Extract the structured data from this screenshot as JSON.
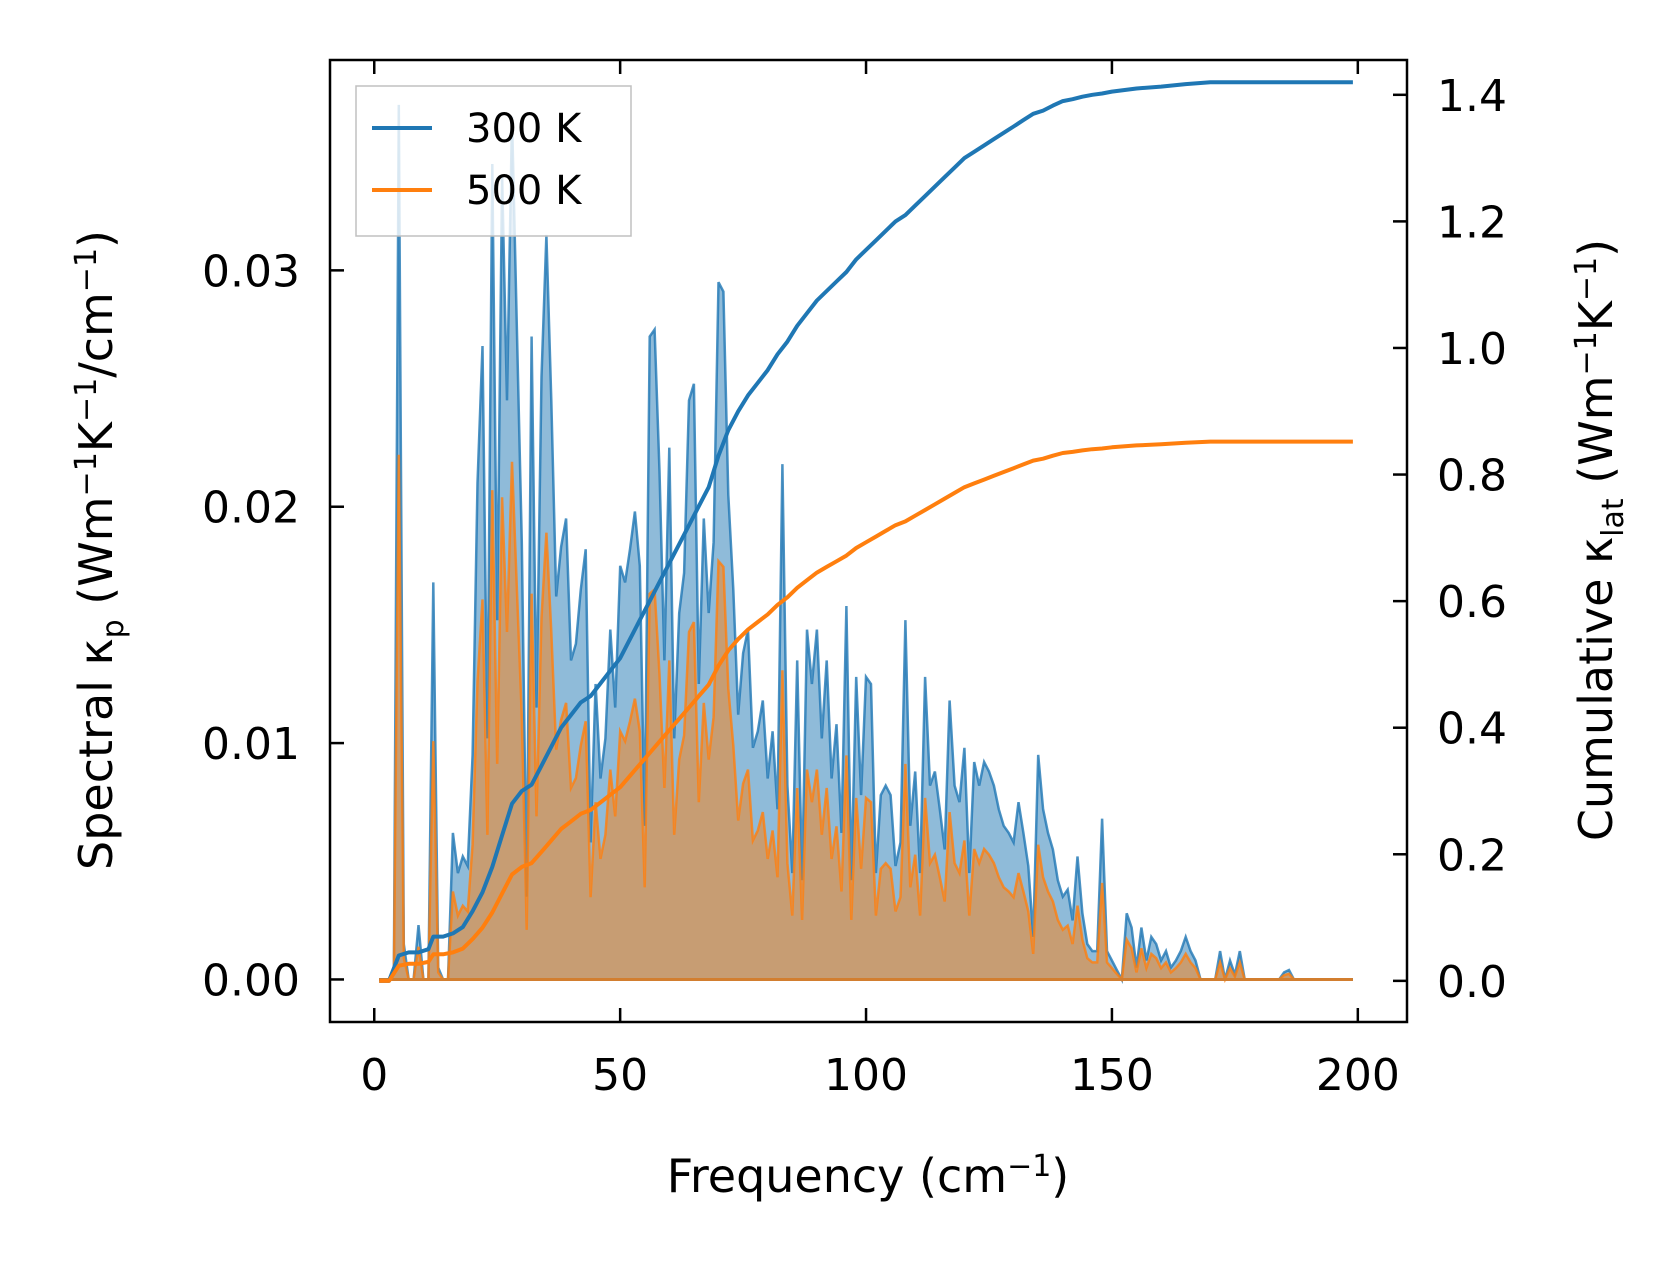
{
  "chart_data": {
    "type": "line",
    "xlabel": "Frequency (cm",
    "xlabel_sup": "−1",
    "xlabel_end": ")",
    "ylabel_left": {
      "p1": "Spectral κ",
      "sub": "p",
      "p2": " (Wm",
      "sup1": "−1",
      "p3": "K",
      "sup2": "−1",
      "p4": "/cm",
      "sup3": "−1",
      "p5": ")"
    },
    "ylabel_right": {
      "p1": "Cumulative κ",
      "sub": "lat",
      "p2": " (Wm",
      "sup1": "−1",
      "p3": "K",
      "sup2": "−1",
      "p4": ")"
    },
    "xlim": [
      -9,
      210
    ],
    "ylim_left": [
      -0.0018,
      0.0389
    ],
    "ylim_right": [
      -0.065,
      1.455
    ],
    "xticks": [
      0,
      50,
      100,
      150,
      200
    ],
    "xtick_labels": [
      "0",
      "50",
      "100",
      "150",
      "200"
    ],
    "yticks_left": [
      0.0,
      0.01,
      0.02,
      0.03
    ],
    "ytick_labels_left": [
      "0.00",
      "0.01",
      "0.02",
      "0.03"
    ],
    "yticks_right": [
      0.0,
      0.2,
      0.4,
      0.6,
      0.8,
      1.0,
      1.2,
      1.4
    ],
    "ytick_labels_right": [
      "0.0",
      "0.2",
      "0.4",
      "0.6",
      "0.8",
      "1.0",
      "1.2",
      "1.4"
    ],
    "legend": {
      "position": "upper-left",
      "entries": [
        {
          "label": "300 K",
          "color": "#1f77b4"
        },
        {
          "label": "500 K",
          "color": "#ff7f0e"
        }
      ]
    },
    "series": [
      {
        "name": "300 K",
        "color": "#1f77b4",
        "spectral": [
          [
            1,
            0
          ],
          [
            2,
            0
          ],
          [
            3,
            0
          ],
          [
            4,
            0.0005
          ],
          [
            5,
            0.037
          ],
          [
            6,
            0.0015
          ],
          [
            7,
            0
          ],
          [
            8,
            0
          ],
          [
            9,
            0.0023
          ],
          [
            10,
            0
          ],
          [
            11,
            0
          ],
          [
            12,
            0.0168
          ],
          [
            13,
            0.0005
          ],
          [
            14,
            0
          ],
          [
            15,
            0
          ],
          [
            16,
            0.0062
          ],
          [
            17,
            0.0045
          ],
          [
            18,
            0.0052
          ],
          [
            19,
            0.0048
          ],
          [
            20,
            0.0095
          ],
          [
            21,
            0.021
          ],
          [
            22,
            0.0268
          ],
          [
            23,
            0.0102
          ],
          [
            24,
            0.0345
          ],
          [
            25,
            0.0152
          ],
          [
            26,
            0.034
          ],
          [
            27,
            0.0245
          ],
          [
            28,
            0.0365
          ],
          [
            29,
            0.0275
          ],
          [
            30,
            0.0185
          ],
          [
            31,
            0.0035
          ],
          [
            32,
            0.0272
          ],
          [
            33,
            0.0115
          ],
          [
            34,
            0.0255
          ],
          [
            35,
            0.0315
          ],
          [
            36,
            0.0245
          ],
          [
            37,
            0.0162
          ],
          [
            38,
            0.0183
          ],
          [
            39,
            0.0195
          ],
          [
            40,
            0.0135
          ],
          [
            41,
            0.0142
          ],
          [
            42,
            0.0165
          ],
          [
            43,
            0.0182
          ],
          [
            44,
            0.0058
          ],
          [
            45,
            0.0125
          ],
          [
            46,
            0.0085
          ],
          [
            47,
            0.0102
          ],
          [
            48,
            0.0148
          ],
          [
            49,
            0.0115
          ],
          [
            50,
            0.0175
          ],
          [
            51,
            0.0168
          ],
          [
            52,
            0.0182
          ],
          [
            53,
            0.0198
          ],
          [
            54,
            0.0175
          ],
          [
            55,
            0.0065
          ],
          [
            56,
            0.0272
          ],
          [
            57,
            0.0275
          ],
          [
            58,
            0.0215
          ],
          [
            59,
            0.0135
          ],
          [
            60,
            0.0225
          ],
          [
            61,
            0.0102
          ],
          [
            62,
            0.0155
          ],
          [
            63,
            0.0172
          ],
          [
            64,
            0.0245
          ],
          [
            65,
            0.0252
          ],
          [
            66,
            0.0125
          ],
          [
            67,
            0.0195
          ],
          [
            68,
            0.0155
          ],
          [
            69,
            0.0185
          ],
          [
            70,
            0.0295
          ],
          [
            71,
            0.0291
          ],
          [
            72,
            0.0205
          ],
          [
            73,
            0.0165
          ],
          [
            74,
            0.0112
          ],
          [
            75,
            0.0138
          ],
          [
            76,
            0.0148
          ],
          [
            77,
            0.0098
          ],
          [
            78,
            0.0105
          ],
          [
            79,
            0.0118
          ],
          [
            80,
            0.0085
          ],
          [
            81,
            0.0105
          ],
          [
            82,
            0.0072
          ],
          [
            83,
            0.0218
          ],
          [
            84,
            0.0082
          ],
          [
            85,
            0.0045
          ],
          [
            86,
            0.0135
          ],
          [
            87,
            0.0042
          ],
          [
            88,
            0.0148
          ],
          [
            89,
            0.0125
          ],
          [
            90,
            0.0148
          ],
          [
            91,
            0.0102
          ],
          [
            92,
            0.0135
          ],
          [
            93,
            0.0085
          ],
          [
            94,
            0.0108
          ],
          [
            95,
            0.0062
          ],
          [
            96,
            0.0158
          ],
          [
            97,
            0.0042
          ],
          [
            98,
            0.0128
          ],
          [
            99,
            0.0078
          ],
          [
            100,
            0.0128
          ],
          [
            101,
            0.0125
          ],
          [
            102,
            0.0045
          ],
          [
            103,
            0.0078
          ],
          [
            104,
            0.0082
          ],
          [
            105,
            0.0078
          ],
          [
            106,
            0.0048
          ],
          [
            107,
            0.0058
          ],
          [
            108,
            0.0152
          ],
          [
            109,
            0.0065
          ],
          [
            110,
            0.0088
          ],
          [
            111,
            0.0045
          ],
          [
            112,
            0.0128
          ],
          [
            113,
            0.0082
          ],
          [
            114,
            0.0088
          ],
          [
            115,
            0.0072
          ],
          [
            116,
            0.0055
          ],
          [
            117,
            0.0118
          ],
          [
            118,
            0.0082
          ],
          [
            119,
            0.0075
          ],
          [
            120,
            0.0098
          ],
          [
            121,
            0.0045
          ],
          [
            122,
            0.0092
          ],
          [
            123,
            0.0082
          ],
          [
            124,
            0.0092
          ],
          [
            125,
            0.0088
          ],
          [
            126,
            0.0082
          ],
          [
            127,
            0.0072
          ],
          [
            128,
            0.0065
          ],
          [
            129,
            0.0062
          ],
          [
            130,
            0.0058
          ],
          [
            131,
            0.0075
          ],
          [
            132,
            0.0062
          ],
          [
            133,
            0.0048
          ],
          [
            134,
            0.0018
          ],
          [
            135,
            0.0095
          ],
          [
            136,
            0.0072
          ],
          [
            137,
            0.0062
          ],
          [
            138,
            0.0055
          ],
          [
            139,
            0.0042
          ],
          [
            140,
            0.0035
          ],
          [
            141,
            0.0038
          ],
          [
            142,
            0.0025
          ],
          [
            143,
            0.0052
          ],
          [
            144,
            0.0028
          ],
          [
            145,
            0.0015
          ],
          [
            146,
            0.0012
          ],
          [
            147,
            0.0012
          ],
          [
            148,
            0.0068
          ],
          [
            149,
            0.0012
          ],
          [
            150,
            0.0008
          ],
          [
            151,
            0.0004
          ],
          [
            152,
            0
          ],
          [
            153,
            0.0028
          ],
          [
            154,
            0.0022
          ],
          [
            155,
            0.0005
          ],
          [
            156,
            0.0022
          ],
          [
            157,
            0.0008
          ],
          [
            158,
            0.0018
          ],
          [
            159,
            0.0015
          ],
          [
            160,
            0.0008
          ],
          [
            161,
            0.0012
          ],
          [
            162,
            0.0005
          ],
          [
            163,
            0.0008
          ],
          [
            164,
            0.0012
          ],
          [
            165,
            0.0018
          ],
          [
            166,
            0.0012
          ],
          [
            167,
            0.0008
          ],
          [
            168,
            0
          ],
          [
            169,
            0
          ],
          [
            170,
            0
          ],
          [
            171,
            0
          ],
          [
            172,
            0.0012
          ],
          [
            173,
            0
          ],
          [
            174,
            0.0008
          ],
          [
            175,
            0.0002
          ],
          [
            176,
            0.0012
          ],
          [
            177,
            0
          ],
          [
            178,
            0
          ],
          [
            179,
            0
          ],
          [
            180,
            0
          ],
          [
            181,
            0
          ],
          [
            182,
            0
          ],
          [
            183,
            0
          ],
          [
            184,
            0
          ],
          [
            185,
            0.0003
          ],
          [
            186,
            0.0004
          ],
          [
            187,
            0
          ],
          [
            188,
            0
          ],
          [
            189,
            0
          ],
          [
            190,
            0
          ],
          [
            192,
            0
          ],
          [
            194,
            0
          ],
          [
            196,
            0
          ],
          [
            198,
            0
          ],
          [
            199,
            0
          ]
        ],
        "cumulative": [
          [
            1,
            0
          ],
          [
            3,
            0
          ],
          [
            4,
            0.02
          ],
          [
            5,
            0.04
          ],
          [
            7,
            0.045
          ],
          [
            9,
            0.045
          ],
          [
            11,
            0.05
          ],
          [
            12,
            0.07
          ],
          [
            14,
            0.07
          ],
          [
            16,
            0.075
          ],
          [
            18,
            0.085
          ],
          [
            20,
            0.11
          ],
          [
            22,
            0.14
          ],
          [
            24,
            0.18
          ],
          [
            26,
            0.23
          ],
          [
            28,
            0.28
          ],
          [
            30,
            0.3
          ],
          [
            32,
            0.31
          ],
          [
            34,
            0.34
          ],
          [
            36,
            0.37
          ],
          [
            38,
            0.4
          ],
          [
            40,
            0.42
          ],
          [
            42,
            0.44
          ],
          [
            44,
            0.45
          ],
          [
            46,
            0.47
          ],
          [
            48,
            0.49
          ],
          [
            50,
            0.51
          ],
          [
            52,
            0.54
          ],
          [
            54,
            0.57
          ],
          [
            56,
            0.6
          ],
          [
            58,
            0.63
          ],
          [
            60,
            0.66
          ],
          [
            62,
            0.69
          ],
          [
            64,
            0.72
          ],
          [
            66,
            0.75
          ],
          [
            68,
            0.78
          ],
          [
            70,
            0.83
          ],
          [
            72,
            0.87
          ],
          [
            74,
            0.9
          ],
          [
            76,
            0.925
          ],
          [
            78,
            0.945
          ],
          [
            80,
            0.965
          ],
          [
            82,
            0.99
          ],
          [
            84,
            1.01
          ],
          [
            86,
            1.035
          ],
          [
            88,
            1.055
          ],
          [
            90,
            1.075
          ],
          [
            92,
            1.09
          ],
          [
            94,
            1.105
          ],
          [
            96,
            1.12
          ],
          [
            98,
            1.14
          ],
          [
            100,
            1.155
          ],
          [
            102,
            1.17
          ],
          [
            104,
            1.185
          ],
          [
            106,
            1.2
          ],
          [
            108,
            1.21
          ],
          [
            110,
            1.225
          ],
          [
            112,
            1.24
          ],
          [
            114,
            1.255
          ],
          [
            116,
            1.27
          ],
          [
            118,
            1.285
          ],
          [
            120,
            1.3
          ],
          [
            122,
            1.31
          ],
          [
            124,
            1.32
          ],
          [
            126,
            1.33
          ],
          [
            128,
            1.34
          ],
          [
            130,
            1.35
          ],
          [
            132,
            1.36
          ],
          [
            134,
            1.37
          ],
          [
            136,
            1.375
          ],
          [
            138,
            1.383
          ],
          [
            140,
            1.39
          ],
          [
            142,
            1.393
          ],
          [
            144,
            1.397
          ],
          [
            146,
            1.4
          ],
          [
            148,
            1.402
          ],
          [
            150,
            1.405
          ],
          [
            155,
            1.41
          ],
          [
            160,
            1.413
          ],
          [
            165,
            1.417
          ],
          [
            170,
            1.42
          ],
          [
            175,
            1.42
          ],
          [
            180,
            1.42
          ],
          [
            185,
            1.42
          ],
          [
            190,
            1.42
          ],
          [
            195,
            1.42
          ],
          [
            199,
            1.42
          ]
        ]
      },
      {
        "name": "500 K",
        "color": "#ff7f0e",
        "scale": 0.6
      }
    ]
  }
}
